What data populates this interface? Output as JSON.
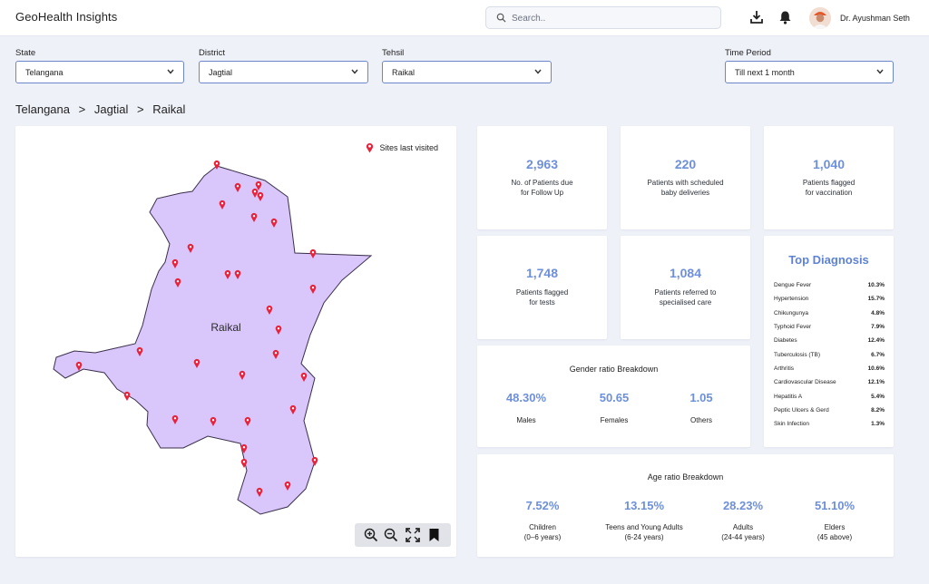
{
  "app": {
    "title": "GeoHealth Insights"
  },
  "search": {
    "placeholder": "Search.."
  },
  "user": {
    "name": "Dr. Ayushman Seth"
  },
  "filters": {
    "state": {
      "label": "State",
      "value": "Telangana"
    },
    "district": {
      "label": "District",
      "value": "Jagtial"
    },
    "tehsil": {
      "label": "Tehsil",
      "value": "Raikal"
    },
    "time_period": {
      "label": "Time Period",
      "value": "Till next 1 month"
    }
  },
  "breadcrumb": {
    "items": [
      "Telangana",
      ">",
      "Jagtial",
      ">",
      "Raikal"
    ]
  },
  "map": {
    "region_label": "Raikal",
    "legend": "Sites last visited",
    "marker_color": "#e8223b",
    "region_color": "#d9c6fb"
  },
  "stats": {
    "follow_up": {
      "value": "2,963",
      "label_line1": "No. of Patients due",
      "label_line2": "for Follow Up"
    },
    "deliveries": {
      "value": "220",
      "label_line1": "Patients with scheduled",
      "label_line2": "baby deliveries"
    },
    "vaccination": {
      "value": "1,040",
      "label_line1": "Patients flagged",
      "label_line2": "for vaccination"
    },
    "tests": {
      "value": "1,748",
      "label_line1": "Patients flagged",
      "label_line2": "for tests"
    },
    "referred": {
      "value": "1,084",
      "label_line1": "Patients referred to",
      "label_line2": "specialised care"
    }
  },
  "diagnosis": {
    "title": "Top Diagnosis",
    "items": [
      {
        "name": "Dengue Fever",
        "pct": "10.3%"
      },
      {
        "name": "Hypertension",
        "pct": "15.7%"
      },
      {
        "name": "Chikungunya",
        "pct": "4.8%"
      },
      {
        "name": "Typhoid Fever",
        "pct": "7.9%"
      },
      {
        "name": "Diabetes",
        "pct": "12.4%"
      },
      {
        "name": "Tuberculosis (TB)",
        "pct": "6.7%"
      },
      {
        "name": "Arthritis",
        "pct": "10.6%"
      },
      {
        "name": "Cardiovascular Disease",
        "pct": "12.1%"
      },
      {
        "name": "Hepatitis A",
        "pct": "5.4%"
      },
      {
        "name": "Peptic Ulcers & Gerd",
        "pct": "8.2%"
      },
      {
        "name": "Skin Infection",
        "pct": "1.3%"
      }
    ]
  },
  "gender": {
    "title": "Gender ratio Breakdown",
    "items": [
      {
        "value": "48.30%",
        "label": "Males"
      },
      {
        "value": "50.65",
        "label": "Females"
      },
      {
        "value": "1.05",
        "label": "Others"
      }
    ]
  },
  "age": {
    "title": "Age ratio Breakdown",
    "items": [
      {
        "value": "7.52%",
        "label1": "Children",
        "label2": "(0–6 years)"
      },
      {
        "value": "13.15%",
        "label1": "Teens and Young Adults",
        "label2": "(6-24 years)"
      },
      {
        "value": "28.23%",
        "label1": "Adults",
        "label2": "(24-44 years)"
      },
      {
        "value": "51.10%",
        "label1": "Elders",
        "label2": "(45 above)"
      }
    ]
  }
}
